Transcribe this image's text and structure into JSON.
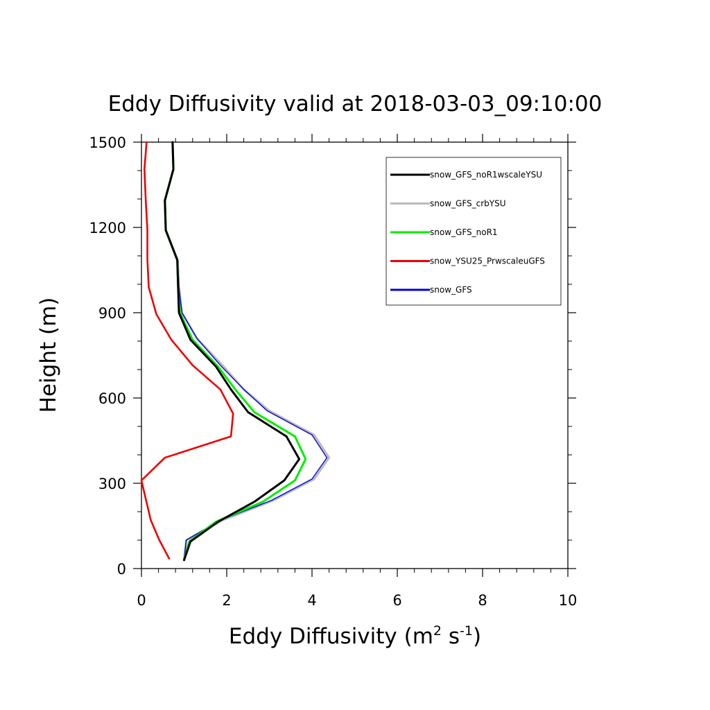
{
  "chart_data": {
    "type": "line",
    "title": "Eddy Diffusivity valid at 2018-03-03_09:10:00",
    "xlabel": {
      "main": "Eddy Diffusivity (m",
      "sup1": "2",
      "mid": " s",
      "sup2": "-1",
      "end": ")"
    },
    "ylabel": "Height (m)",
    "xlim": [
      0,
      10
    ],
    "ylim": [
      0,
      1500
    ],
    "xticks": [
      0,
      2,
      4,
      6,
      8,
      10
    ],
    "yticks": [
      0,
      300,
      600,
      900,
      1200,
      1500
    ],
    "xtick_labels": [
      "0",
      "2",
      "4",
      "6",
      "8",
      "10"
    ],
    "ytick_labels": [
      "0",
      "300",
      "600",
      "900",
      "1200",
      "1500"
    ],
    "grid": false,
    "legend_position": "top-right",
    "series": [
      {
        "name": "snow_GFS_noR1wscaleYSU",
        "color": "#000000",
        "points": [
          [
            1.0,
            30
          ],
          [
            1.15,
            95
          ],
          [
            1.8,
            165
          ],
          [
            2.65,
            235
          ],
          [
            3.35,
            310
          ],
          [
            3.7,
            385
          ],
          [
            3.4,
            465
          ],
          [
            2.5,
            550
          ],
          [
            2.1,
            630
          ],
          [
            1.75,
            710
          ],
          [
            1.15,
            805
          ],
          [
            0.88,
            900
          ],
          [
            0.86,
            990
          ],
          [
            0.84,
            1085
          ],
          [
            0.57,
            1190
          ],
          [
            0.55,
            1295
          ],
          [
            0.75,
            1405
          ],
          [
            0.73,
            1500
          ]
        ]
      },
      {
        "name": "snow_GFS_crbYSU",
        "color": "#bbbbbb",
        "points": [
          [
            1.0,
            30
          ],
          [
            1.05,
            100
          ],
          [
            1.9,
            170
          ],
          [
            3.1,
            240
          ],
          [
            4.05,
            315
          ],
          [
            4.4,
            390
          ],
          [
            4.05,
            470
          ],
          [
            3.0,
            555
          ],
          [
            2.4,
            630
          ],
          [
            1.9,
            715
          ],
          [
            1.3,
            810
          ],
          [
            0.95,
            900
          ],
          [
            0.88,
            990
          ],
          [
            0.85,
            1085
          ],
          [
            0.57,
            1190
          ],
          [
            0.55,
            1295
          ],
          [
            0.75,
            1405
          ],
          [
            0.73,
            1500
          ]
        ]
      },
      {
        "name": "snow_GFS_noR1",
        "color": "#00ee00",
        "points": [
          [
            1.0,
            30
          ],
          [
            1.12,
            95
          ],
          [
            1.75,
            165
          ],
          [
            2.85,
            235
          ],
          [
            3.6,
            310
          ],
          [
            3.85,
            385
          ],
          [
            3.6,
            465
          ],
          [
            2.65,
            550
          ],
          [
            2.2,
            630
          ],
          [
            1.8,
            710
          ],
          [
            1.2,
            805
          ],
          [
            0.9,
            900
          ],
          [
            0.86,
            990
          ],
          [
            0.84,
            1085
          ],
          [
            0.57,
            1190
          ],
          [
            0.55,
            1295
          ],
          [
            0.75,
            1405
          ],
          [
            0.73,
            1500
          ]
        ]
      },
      {
        "name": "snow_YSU25_PrwscaleuGFS",
        "color": "#ee0000",
        "points": [
          [
            0.65,
            35
          ],
          [
            0.42,
            100
          ],
          [
            0.22,
            170
          ],
          [
            0.1,
            245
          ],
          [
            0.0,
            310
          ],
          [
            0.55,
            390
          ],
          [
            2.1,
            465
          ],
          [
            2.15,
            545
          ],
          [
            1.85,
            630
          ],
          [
            1.2,
            715
          ],
          [
            0.7,
            805
          ],
          [
            0.35,
            895
          ],
          [
            0.17,
            990
          ],
          [
            0.14,
            1085
          ],
          [
            0.14,
            1190
          ],
          [
            0.1,
            1295
          ],
          [
            0.07,
            1405
          ],
          [
            0.12,
            1500
          ]
        ]
      },
      {
        "name": "snow_GFS",
        "color": "#0000dd",
        "points": [
          [
            1.0,
            30
          ],
          [
            1.05,
            100
          ],
          [
            1.85,
            170
          ],
          [
            3.05,
            240
          ],
          [
            4.0,
            315
          ],
          [
            4.35,
            390
          ],
          [
            4.0,
            470
          ],
          [
            2.95,
            555
          ],
          [
            2.4,
            630
          ],
          [
            1.85,
            715
          ],
          [
            1.3,
            810
          ],
          [
            0.95,
            900
          ],
          [
            0.88,
            990
          ],
          [
            0.85,
            1085
          ],
          [
            0.57,
            1190
          ],
          [
            0.55,
            1295
          ],
          [
            0.75,
            1405
          ],
          [
            0.73,
            1500
          ]
        ]
      }
    ]
  }
}
